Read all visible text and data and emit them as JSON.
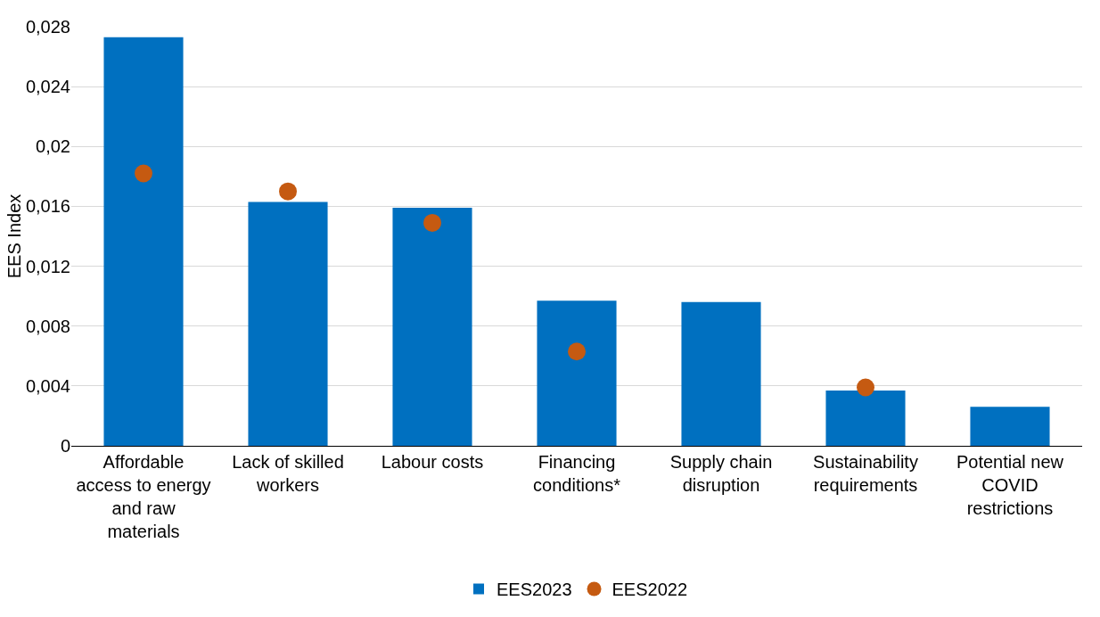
{
  "chart_data": {
    "type": "bar",
    "ylabel": "EES Index",
    "categories": [
      "Affordable access to energy and raw materials",
      "Lack of skilled workers",
      "Labour costs",
      "Financing conditions*",
      "Supply chain disruption",
      "Sustainability requirements",
      "Potential new COVID restrictions"
    ],
    "series": [
      {
        "name": "EES2023",
        "color": "#0070c0",
        "values": [
          0.0273,
          0.0163,
          0.0159,
          0.0097,
          0.0096,
          0.0037,
          0.0026
        ]
      },
      {
        "name": "EES2022",
        "type": "scatter",
        "color": "#c55a11",
        "marker": "circle",
        "values": [
          0.0182,
          0.017,
          0.0149,
          0.0063,
          null,
          0.0039,
          null
        ]
      }
    ],
    "ylim": [
      0,
      0.028
    ],
    "yticks": [
      0,
      {
        "value": 0.004,
        "label": "0,004"
      },
      {
        "value": 0.008,
        "label": "0,008"
      },
      {
        "value": 0.012,
        "label": "0,012"
      },
      {
        "value": 0.016,
        "label": "0,016"
      },
      {
        "value": 0.02,
        "label": "0,02"
      },
      {
        "value": 0.024,
        "label": "0,024"
      },
      {
        "value": 0.028,
        "label": "0,028"
      }
    ],
    "grid": "y",
    "legend": "bottom"
  }
}
